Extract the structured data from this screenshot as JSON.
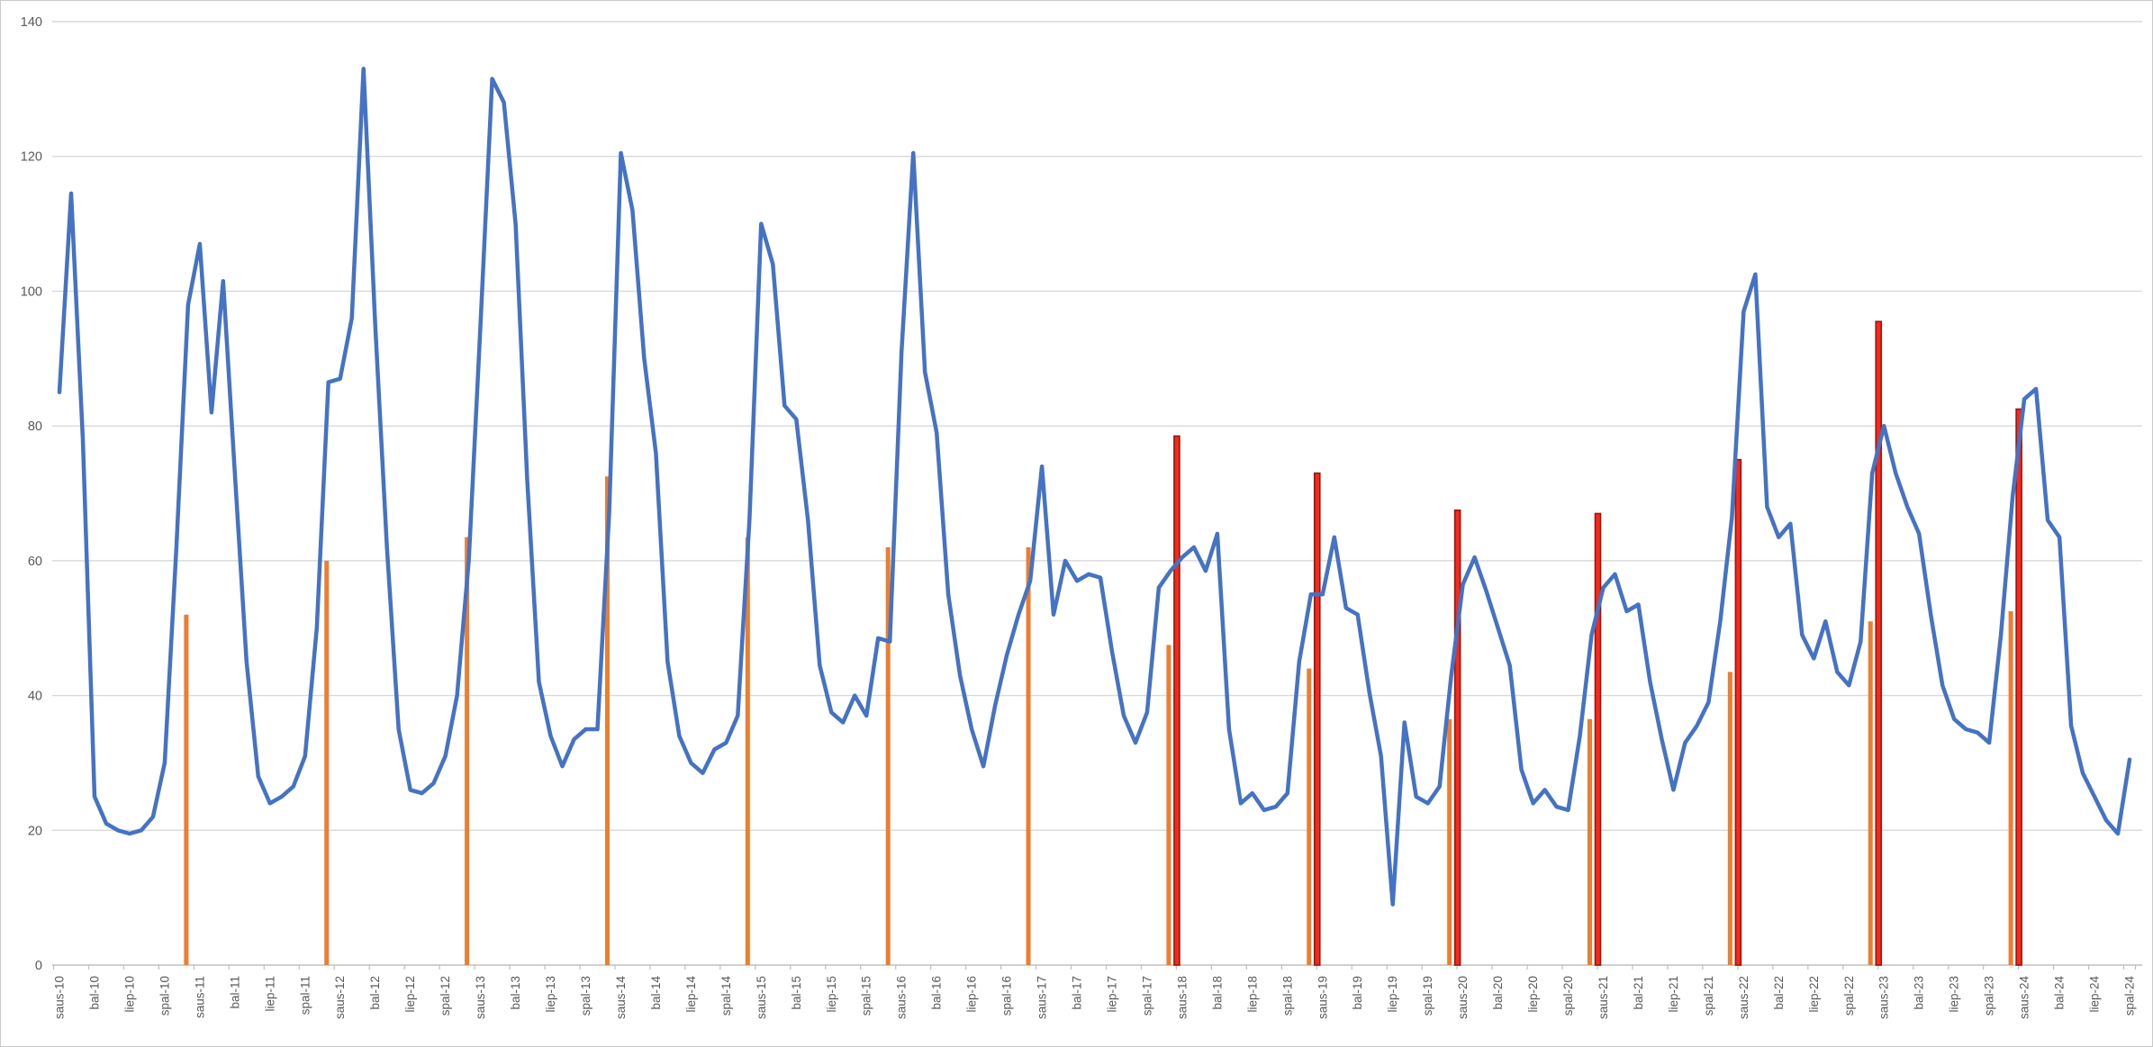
{
  "frame": {
    "background": "#FFFFFF",
    "border_color": "#C9C9C9",
    "axis_color": "#BFBFBF",
    "gridline_color": "#D9D9D9",
    "label_color": "#595959"
  },
  "chart_data": {
    "type": "line",
    "subtype": "combo: monthly line series + two annual bar series (thin vertical bars)",
    "title": "",
    "xlabel": "",
    "ylabel": "",
    "ylim": [
      0,
      140
    ],
    "grid": "horizontal gridlines every 20, light gray",
    "legend_position": "none",
    "y_ticks": [
      0,
      20,
      40,
      60,
      80,
      100,
      120,
      140
    ],
    "x_tick_labels": [
      "saus-10",
      "bal-10",
      "liep-10",
      "spal-10",
      "saus-11",
      "bal-11",
      "liep-11",
      "spal-11",
      "saus-12",
      "bal-12",
      "liep-12",
      "spal-12",
      "saus-13",
      "bal-13",
      "liep-13",
      "spal-13",
      "saus-14",
      "bal-14",
      "liep-14",
      "spal-14",
      "saus-15",
      "bal-15",
      "liep-15",
      "spal-15",
      "saus-16",
      "bal-16",
      "liep-16",
      "spal-16",
      "saus-17",
      "bal-17",
      "liep-17",
      "spal-17",
      "saus-18",
      "bal-18",
      "liep-18",
      "spal-18",
      "saus-19",
      "bal-19",
      "liep-19",
      "spal-19",
      "saus-20",
      "bal-20",
      "liep-20",
      "spal-20",
      "saus-21",
      "bal-21",
      "liep-21",
      "spal-21",
      "saus-22",
      "bal-22",
      "liep-22",
      "spal-22",
      "saus-23",
      "bal-23",
      "liep-23",
      "spal-23",
      "saus-24",
      "bal-24",
      "liep-24",
      "spal-24"
    ],
    "x_tick_label_rotation_deg": -90,
    "x_label_interval_months": 3,
    "series": [
      {
        "name": "monthly-line",
        "type": "line",
        "color": "#4472C4",
        "stroke_width": 4.5,
        "start_month": "saus-10 (2010-01)",
        "end_month": "spal-24 (2024-10)",
        "values": [
          85,
          114.5,
          78,
          25,
          21,
          20,
          19.5,
          20,
          22,
          30,
          62,
          98,
          107,
          82,
          101.5,
          73,
          45,
          28,
          24,
          25,
          26.5,
          31,
          50,
          86.5,
          87,
          96,
          133,
          95,
          62,
          35,
          26,
          25.5,
          27,
          31,
          40,
          60,
          95,
          131.5,
          128,
          110,
          72,
          42,
          34,
          29.5,
          33.5,
          35,
          35,
          67,
          120.5,
          112,
          90,
          76,
          45,
          34,
          30,
          28.5,
          32,
          33,
          37,
          66,
          110,
          104,
          83,
          81,
          66,
          44.5,
          37.5,
          36,
          40,
          37,
          48.5,
          48,
          91,
          120.5,
          88,
          79,
          55,
          43,
          35,
          29.5,
          38.5,
          46,
          52,
          57,
          74,
          52,
          60,
          57,
          58,
          57.5,
          46.5,
          37,
          33,
          37.5,
          56,
          58.5,
          60.5,
          62,
          58.5,
          64,
          35,
          24,
          25.5,
          23,
          23.5,
          25.5,
          45,
          55,
          55,
          63.5,
          53,
          52,
          40.5,
          31,
          9,
          36,
          25,
          24,
          26.5,
          43,
          56.5,
          60.5,
          55.5,
          50,
          44.5,
          29,
          24,
          26,
          23.5,
          23,
          34,
          49,
          56,
          58,
          52.5,
          53.5,
          42,
          33.5,
          26,
          33,
          35.5,
          39,
          51,
          66.5,
          97,
          102.5,
          68,
          63.5,
          65.5,
          49,
          45.5,
          51,
          43.5,
          41.5,
          48,
          73,
          80,
          73,
          68,
          64,
          52,
          41.5,
          36.5,
          35,
          34.5,
          33,
          49,
          69.5,
          84,
          85.5,
          66,
          63.5,
          35.5,
          28.5,
          25,
          21.5,
          19.5,
          30.5
        ]
      },
      {
        "name": "orange-annual-bar",
        "type": "bar",
        "color": "#ED7D31",
        "bar_month": "December",
        "points": [
          {
            "year": 2010,
            "value": 52
          },
          {
            "year": 2011,
            "value": 60
          },
          {
            "year": 2012,
            "value": 63.5
          },
          {
            "year": 2013,
            "value": 72.5
          },
          {
            "year": 2014,
            "value": 63.5
          },
          {
            "year": 2015,
            "value": 62
          },
          {
            "year": 2016,
            "value": 62
          },
          {
            "year": 2017,
            "value": 47.5
          },
          {
            "year": 2018,
            "value": 44
          },
          {
            "year": 2019,
            "value": 36.5
          },
          {
            "year": 2020,
            "value": 36.5
          },
          {
            "year": 2021,
            "value": 43.5
          },
          {
            "year": 2022,
            "value": 51
          },
          {
            "year": 2023,
            "value": 52.5
          }
        ]
      },
      {
        "name": "red-annual-bar",
        "type": "bar",
        "color": "#F42A1D",
        "border_color": "#9C150C",
        "bar_month": "January",
        "points": [
          {
            "year": 2018,
            "value": 78.5
          },
          {
            "year": 2019,
            "value": 73
          },
          {
            "year": 2020,
            "value": 67.5
          },
          {
            "year": 2021,
            "value": 67
          },
          {
            "year": 2022,
            "value": 75
          },
          {
            "year": 2023,
            "value": 95.5
          },
          {
            "year": 2024,
            "value": 82.5
          }
        ]
      }
    ]
  }
}
